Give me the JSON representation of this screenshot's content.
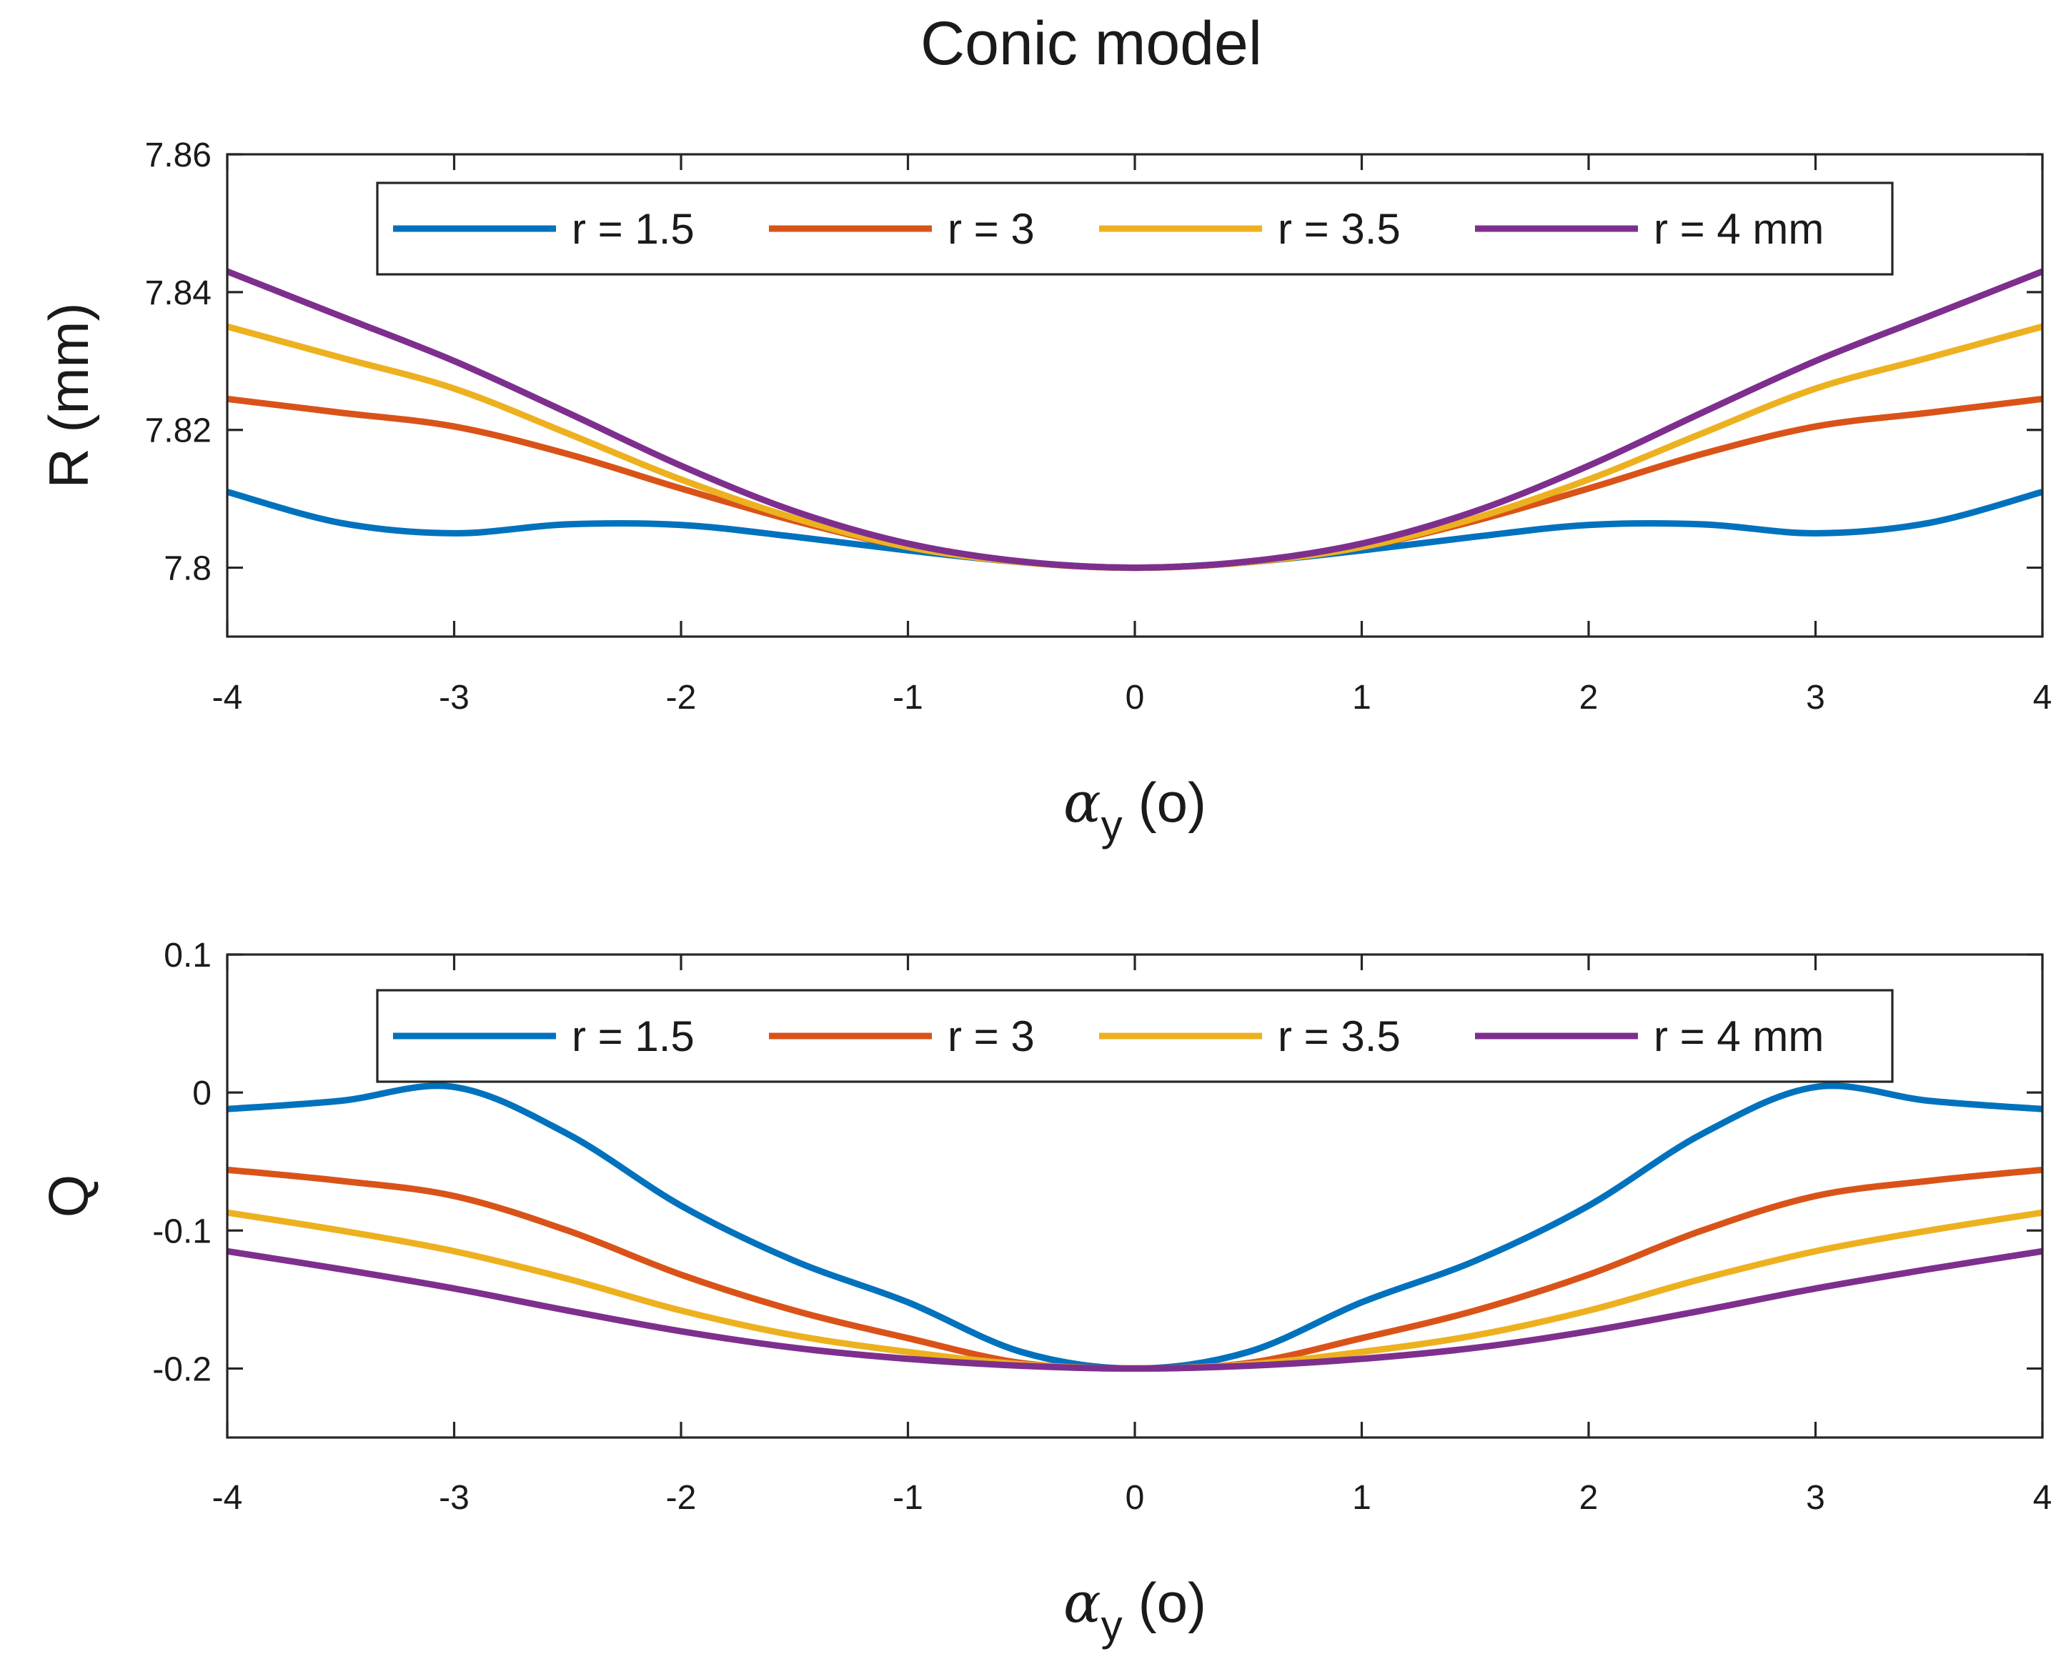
{
  "title": "Conic model",
  "chart_data": [
    {
      "type": "line",
      "xlabel": "αy (o)",
      "xlabel_symbol": "α",
      "xlabel_subscript": "y",
      "xlabel_unit": "(o)",
      "ylabel": "R (mm)",
      "xlim": [
        -4,
        4
      ],
      "ylim": [
        7.79,
        7.86
      ],
      "xticks": [
        -4,
        -3,
        -2,
        -1,
        0,
        1,
        2,
        3,
        4
      ],
      "xtick_labels": [
        "-4",
        "-3",
        "-2",
        "-1",
        "0",
        "1",
        "2",
        "3",
        "4"
      ],
      "yticks": [
        7.8,
        7.82,
        7.84,
        7.86
      ],
      "ytick_labels": [
        "7.8",
        "7.82",
        "7.84",
        "7.86"
      ],
      "grid": false,
      "legend_position": "top",
      "x": [
        -4,
        -3.5,
        -3,
        -2.5,
        -2,
        -1.5,
        -1,
        -0.5,
        0,
        0.5,
        1,
        1.5,
        2,
        2.5,
        3,
        3.5,
        4
      ],
      "series": [
        {
          "name": "r = 1.5",
          "color": "#0072BD",
          "values": [
            7.811,
            7.8065,
            7.805,
            7.8063,
            7.8062,
            7.8045,
            7.8025,
            7.8008,
            7.8,
            7.8008,
            7.8025,
            7.8045,
            7.8062,
            7.8063,
            7.805,
            7.8065,
            7.811
          ]
        },
        {
          "name": "r = 3",
          "color": "#D95319",
          "values": [
            7.8245,
            7.8225,
            7.8205,
            7.8165,
            7.8115,
            7.8068,
            7.803,
            7.8008,
            7.8,
            7.8008,
            7.803,
            7.8068,
            7.8115,
            7.8165,
            7.8205,
            7.8225,
            7.8245
          ]
        },
        {
          "name": "r = 3.5",
          "color": "#EDB120",
          "values": [
            7.835,
            7.8305,
            7.826,
            7.8195,
            7.8128,
            7.8072,
            7.803,
            7.8008,
            7.8,
            7.8008,
            7.803,
            7.8072,
            7.8128,
            7.8195,
            7.826,
            7.8305,
            7.835
          ]
        },
        {
          "name": "r = 4 mm",
          "color": "#7E2F8E",
          "values": [
            7.843,
            7.8365,
            7.83,
            7.8225,
            7.8148,
            7.8082,
            7.8035,
            7.8009,
            7.8,
            7.8009,
            7.8035,
            7.8082,
            7.8148,
            7.8225,
            7.83,
            7.8365,
            7.843
          ]
        }
      ]
    },
    {
      "type": "line",
      "xlabel": "αy (o)",
      "xlabel_symbol": "α",
      "xlabel_subscript": "y",
      "xlabel_unit": "(o)",
      "ylabel": "Q",
      "xlim": [
        -4,
        4
      ],
      "ylim": [
        -0.25,
        0.1
      ],
      "xticks": [
        -4,
        -3,
        -2,
        -1,
        0,
        1,
        2,
        3,
        4
      ],
      "xtick_labels": [
        "-4",
        "-3",
        "-2",
        "-1",
        "0",
        "1",
        "2",
        "3",
        "4"
      ],
      "yticks": [
        -0.2,
        -0.1,
        0,
        0.1
      ],
      "ytick_labels": [
        "-0.2",
        "-0.1",
        "0",
        "0.1"
      ],
      "grid": false,
      "legend_position": "top",
      "x": [
        -4,
        -3.5,
        -3,
        -2.5,
        -2,
        -1.5,
        -1,
        -0.5,
        0,
        0.5,
        1,
        1.5,
        2,
        2.5,
        3,
        3.5,
        4
      ],
      "series": [
        {
          "name": "r = 1.5",
          "color": "#0072BD",
          "values": [
            -0.012,
            -0.006,
            0.004,
            -0.03,
            -0.082,
            -0.122,
            -0.152,
            -0.188,
            -0.2,
            -0.188,
            -0.152,
            -0.122,
            -0.082,
            -0.03,
            0.004,
            -0.006,
            -0.012
          ]
        },
        {
          "name": "r = 3",
          "color": "#D95319",
          "values": [
            -0.056,
            -0.064,
            -0.075,
            -0.1,
            -0.132,
            -0.158,
            -0.178,
            -0.196,
            -0.2,
            -0.196,
            -0.178,
            -0.158,
            -0.132,
            -0.1,
            -0.075,
            -0.064,
            -0.056
          ]
        },
        {
          "name": "r = 3.5",
          "color": "#EDB120",
          "values": [
            -0.087,
            -0.1,
            -0.115,
            -0.135,
            -0.158,
            -0.176,
            -0.188,
            -0.197,
            -0.2,
            -0.197,
            -0.188,
            -0.176,
            -0.158,
            -0.135,
            -0.115,
            -0.1,
            -0.087
          ]
        },
        {
          "name": "r = 4 mm",
          "color": "#7E2F8E",
          "values": [
            -0.115,
            -0.128,
            -0.142,
            -0.158,
            -0.173,
            -0.185,
            -0.193,
            -0.198,
            -0.2,
            -0.198,
            -0.193,
            -0.185,
            -0.173,
            -0.158,
            -0.142,
            -0.128,
            -0.115
          ]
        }
      ]
    }
  ]
}
